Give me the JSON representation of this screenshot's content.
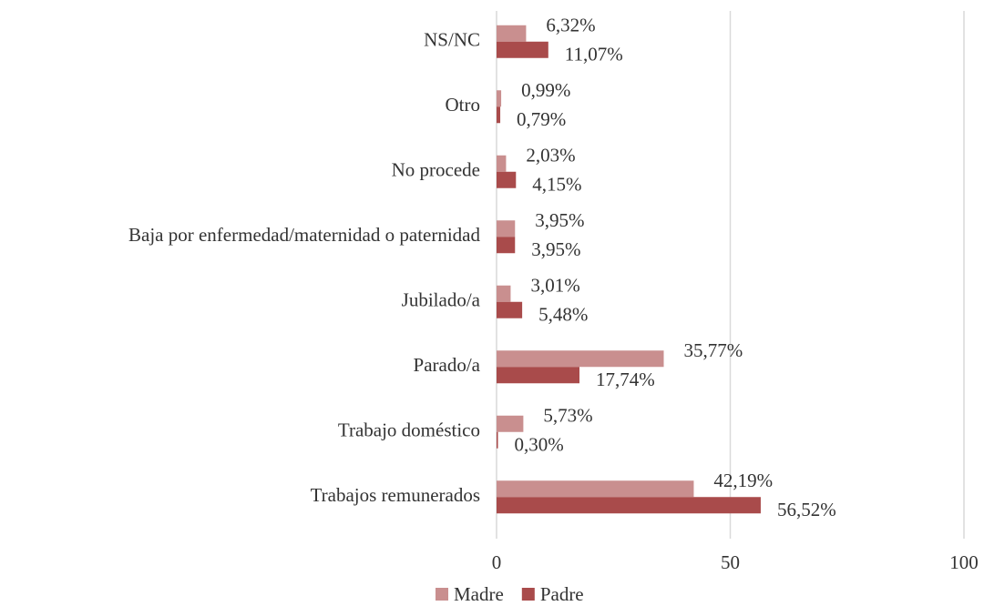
{
  "chart_data": {
    "type": "bar",
    "orientation": "horizontal",
    "categories": [
      "NS/NC",
      "Otro",
      "No procede",
      "Baja por enfermedad/maternidad o paternidad",
      "Jubilado/a",
      "Parado/a",
      "Trabajo doméstico",
      "Trabajos remunerados"
    ],
    "series": [
      {
        "name": "Madre",
        "color": "#c98f8f",
        "values": [
          6.32,
          0.99,
          2.03,
          3.95,
          3.01,
          35.77,
          5.73,
          42.19
        ],
        "value_labels": [
          "6,32%",
          "0,99%",
          "2,03%",
          "3,95%",
          "3,01%",
          "35,77%",
          "5,73%",
          "42,19%"
        ]
      },
      {
        "name": "Padre",
        "color": "#a94b4b",
        "values": [
          11.07,
          0.79,
          4.15,
          3.95,
          5.48,
          17.74,
          0.3,
          56.52
        ],
        "value_labels": [
          "11,07%",
          "0,79%",
          "4,15%",
          "3,95%",
          "5,48%",
          "17,74%",
          "0,30%",
          "56,52%"
        ]
      }
    ],
    "xlim": [
      0,
      100
    ],
    "xticks": [
      0,
      50,
      100
    ],
    "grid": true,
    "legend": "bottom"
  }
}
